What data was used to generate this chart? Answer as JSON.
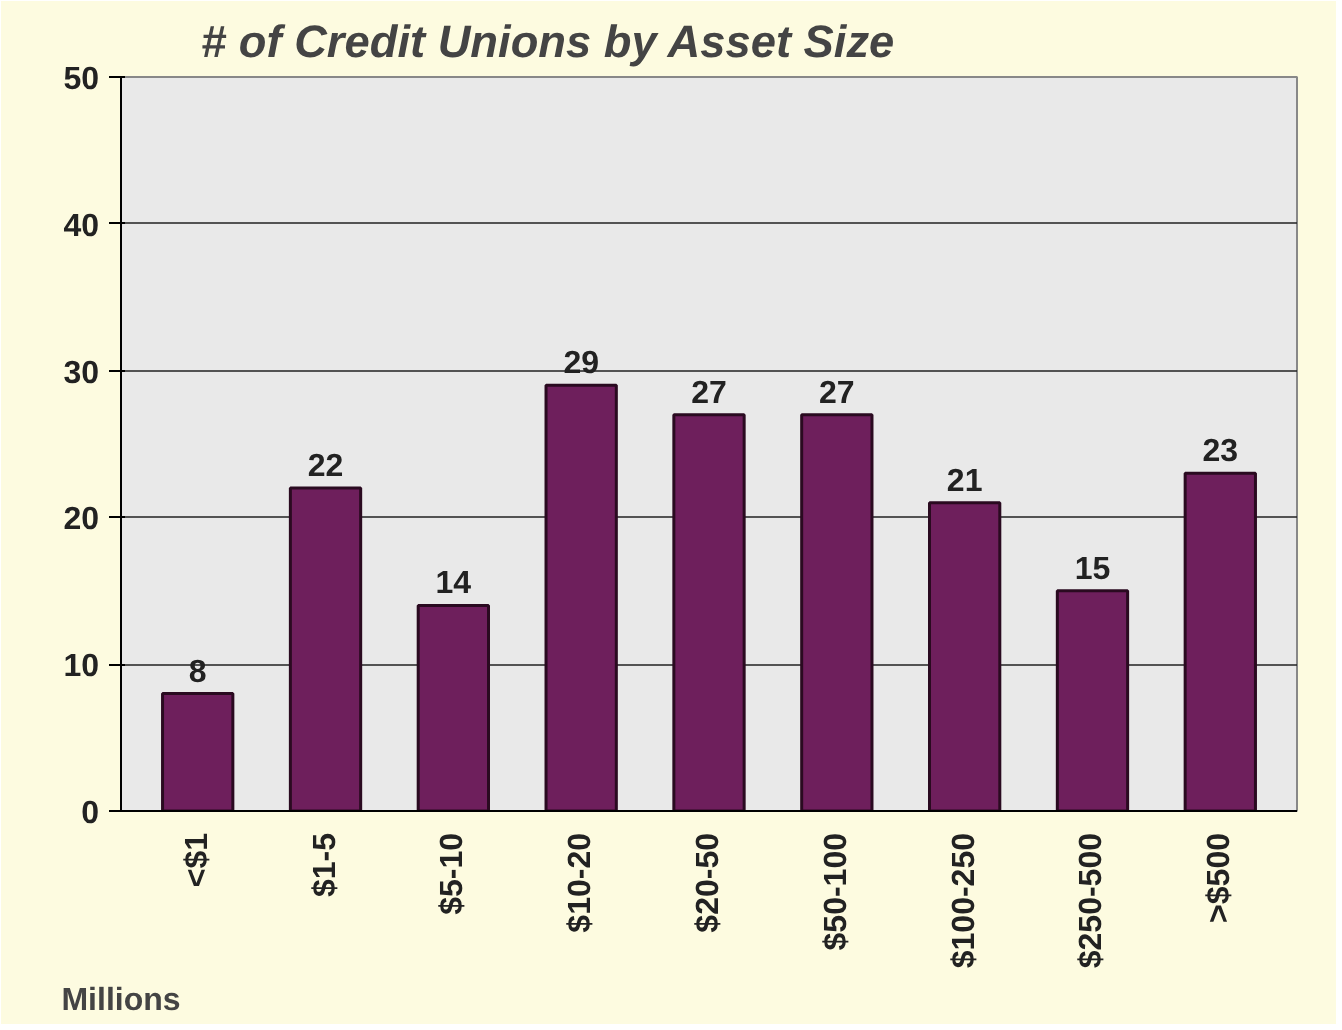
{
  "chart_data": {
    "type": "bar",
    "title": "# of Credit Unions by Asset Size",
    "xlabel": "Millions",
    "categories": [
      "<$1",
      "$1-5",
      "$5-10",
      "$10-20",
      "$20-50",
      "$50-100",
      "$100-250",
      "$250-500",
      ">$500"
    ],
    "values": [
      8,
      22,
      14,
      29,
      27,
      27,
      21,
      15,
      23
    ],
    "color": "#6e1f5c",
    "ylim": [
      0,
      50
    ],
    "yticks": [
      0,
      10,
      20,
      30,
      40,
      50
    ],
    "grid": "y",
    "data_labels": true
  }
}
